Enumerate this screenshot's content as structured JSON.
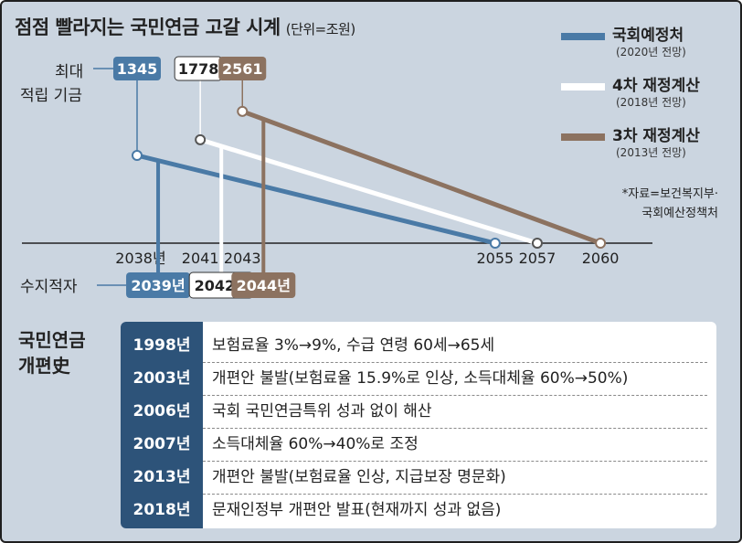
{
  "header": {
    "title": "점점 빨라지는 국민연금 고갈 시계",
    "unit": "(단위=조원)"
  },
  "labels": {
    "max_fund_line1": "최대",
    "max_fund_line2": "적립 기금",
    "deficit": "수지적자"
  },
  "legend": [
    {
      "name": "국회예정처",
      "note": "(2020년 전망)",
      "color": "#4a7aa6"
    },
    {
      "name": "4차 재정계산",
      "note": "(2018년 전망)",
      "color": "#ffffff"
    },
    {
      "name": "3차 재정계산",
      "note": "(2013년 전망)",
      "color": "#8c7260"
    }
  ],
  "source": {
    "line1": "*자료=보건복지부·",
    "line2": "국회예산정책처"
  },
  "chart_data": {
    "type": "line",
    "title": "점점 빨라지는 국민연금 고갈 시계",
    "unit": "(단위=조원)",
    "x_ticks": [
      "2038년",
      "2041",
      "2043",
      "2055",
      "2057",
      "2060"
    ],
    "series": [
      {
        "name": "국회예정처",
        "note": "(2020년 전망)",
        "color": "#4a7aa6",
        "peak_year": 2038,
        "peak_value": 1345,
        "deficit_year": 2039,
        "deficit_label": "2039년",
        "depletion_year": 2055,
        "depletion_value": 0
      },
      {
        "name": "4차 재정계산",
        "note": "(2018년 전망)",
        "color": "#ffffff",
        "peak_year": 2041,
        "peak_value": 1778,
        "deficit_year": 2042,
        "deficit_label": "2042년",
        "depletion_year": 2057,
        "depletion_value": 0
      },
      {
        "name": "3차 재정계산",
        "note": "(2013년 전망)",
        "color": "#8c7260",
        "peak_year": 2043,
        "peak_value": 2561,
        "deficit_year": 2044,
        "deficit_label": "2044년",
        "depletion_year": 2060,
        "depletion_value": 0
      }
    ]
  },
  "history": {
    "title_line1": "국민연금",
    "title_line2": "개편史",
    "rows": [
      {
        "year": "1998년",
        "text": "보험료율 3%→9%, 수급 연령 60세→65세"
      },
      {
        "year": "2003년",
        "text": "개편안 불발(보험료율 15.9%로 인상, 소득대체율 60%→50%)"
      },
      {
        "year": "2006년",
        "text": "국회 국민연금특위 성과 없이 해산"
      },
      {
        "year": "2007년",
        "text": "소득대체율 60%→40%로 조정"
      },
      {
        "year": "2013년",
        "text": "개편안 불발(보험료율 인상, 지급보장 명문화)"
      },
      {
        "year": "2018년",
        "text": "문재인정부 개편안 발표(현재까지 성과 없음)"
      }
    ]
  }
}
